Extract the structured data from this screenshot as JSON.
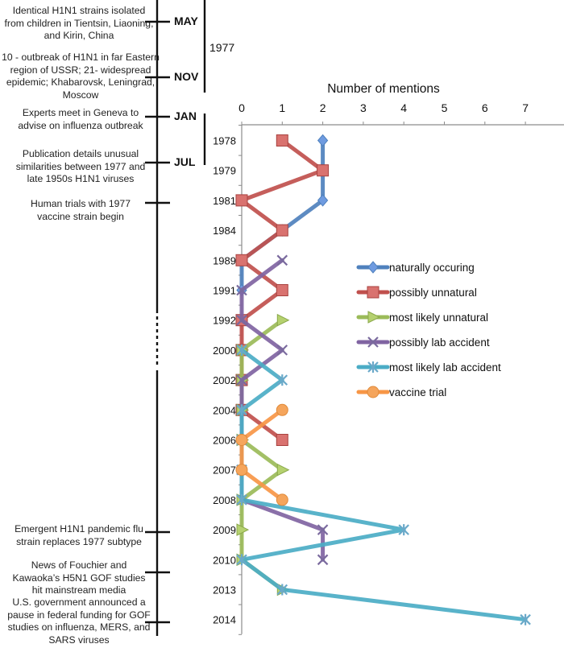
{
  "timeline": {
    "events": [
      {
        "text": "Identical H1N1 strains isolated from children in Tientsin, Liaoning, and Kirin, China",
        "month": "MAY"
      },
      {
        "text": "10 - outbreak of H1N1 in far Eastern region of USSR; 21- widespread epidemic; Khabarovsk, Leningrad, Moscow",
        "month": "NOV"
      },
      {
        "text": "Experts meet in Geneva to advise on influenza outbreak",
        "month": "JAN"
      },
      {
        "text": "Publication details unusual similarities between 1977 and late 1950s H1N1 viruses",
        "month": "JUL"
      },
      {
        "text": "Human trials with 1977 vaccine strain begin",
        "month": ""
      },
      {
        "text": "Emergent H1N1 pandemic flu strain replaces 1977 subtype",
        "month": ""
      },
      {
        "text": "News of Fouchier and Kawaoka’s H5N1 GOF studies hit mainstream media",
        "month": ""
      },
      {
        "text": "U.S. government announced a pause in federal funding for GOF studies on influenza, MERS, and SARS viruses",
        "month": ""
      }
    ],
    "brackets": [
      {
        "year": "1977"
      },
      {
        "year": "1978"
      }
    ]
  },
  "chart_data": {
    "type": "line",
    "orientation": "horizontal-values, vertical-categories",
    "title": "",
    "xlabel": "Number of mentions",
    "ylabel": "",
    "xlim": [
      0,
      7
    ],
    "xticks": [
      "0",
      "1",
      "2",
      "3",
      "4",
      "5",
      "6",
      "7"
    ],
    "grid": false,
    "legend_position": "right-middle",
    "categories": [
      "1978",
      "1979",
      "1981",
      "1984",
      "1989",
      "1991",
      "1992",
      "2000",
      "2002",
      "2004",
      "2006",
      "2007",
      "2008",
      "2009",
      "2010",
      "2013",
      "2014"
    ],
    "series": [
      {
        "name": "naturally occuring",
        "color": "#4f81bd",
        "marker": "diamond",
        "values": [
          2,
          2,
          2,
          1,
          0,
          0,
          null,
          null,
          null,
          null,
          null,
          null,
          null,
          null,
          null,
          null,
          null
        ]
      },
      {
        "name": "possibly unnatural",
        "color": "#c0504d",
        "marker": "square",
        "values": [
          1,
          2,
          0,
          1,
          0,
          1,
          0,
          0,
          0,
          0,
          1,
          null,
          null,
          null,
          null,
          null,
          null
        ]
      },
      {
        "name": "most likely unnatural",
        "color": "#9bbb59",
        "marker": "triangle",
        "values": [
          null,
          null,
          null,
          null,
          null,
          null,
          1,
          0,
          0,
          0,
          0,
          1,
          0,
          0,
          0,
          1,
          null
        ]
      },
      {
        "name": "possibly lab accident",
        "color": "#8064a2",
        "marker": "x",
        "values": [
          null,
          null,
          null,
          null,
          1,
          0,
          0,
          1,
          0,
          0,
          0,
          0,
          0,
          2,
          2,
          null,
          null
        ]
      },
      {
        "name": "most likely lab accident",
        "color": "#4bacc6",
        "marker": "star",
        "values": [
          null,
          null,
          null,
          null,
          null,
          null,
          null,
          0,
          1,
          0,
          0,
          0,
          0,
          4,
          0,
          1,
          7
        ]
      },
      {
        "name": "vaccine trial",
        "color": "#f79646",
        "marker": "circle",
        "values": [
          null,
          null,
          null,
          null,
          null,
          null,
          null,
          null,
          null,
          1,
          0,
          0,
          1,
          null,
          null,
          null,
          null
        ]
      }
    ]
  }
}
